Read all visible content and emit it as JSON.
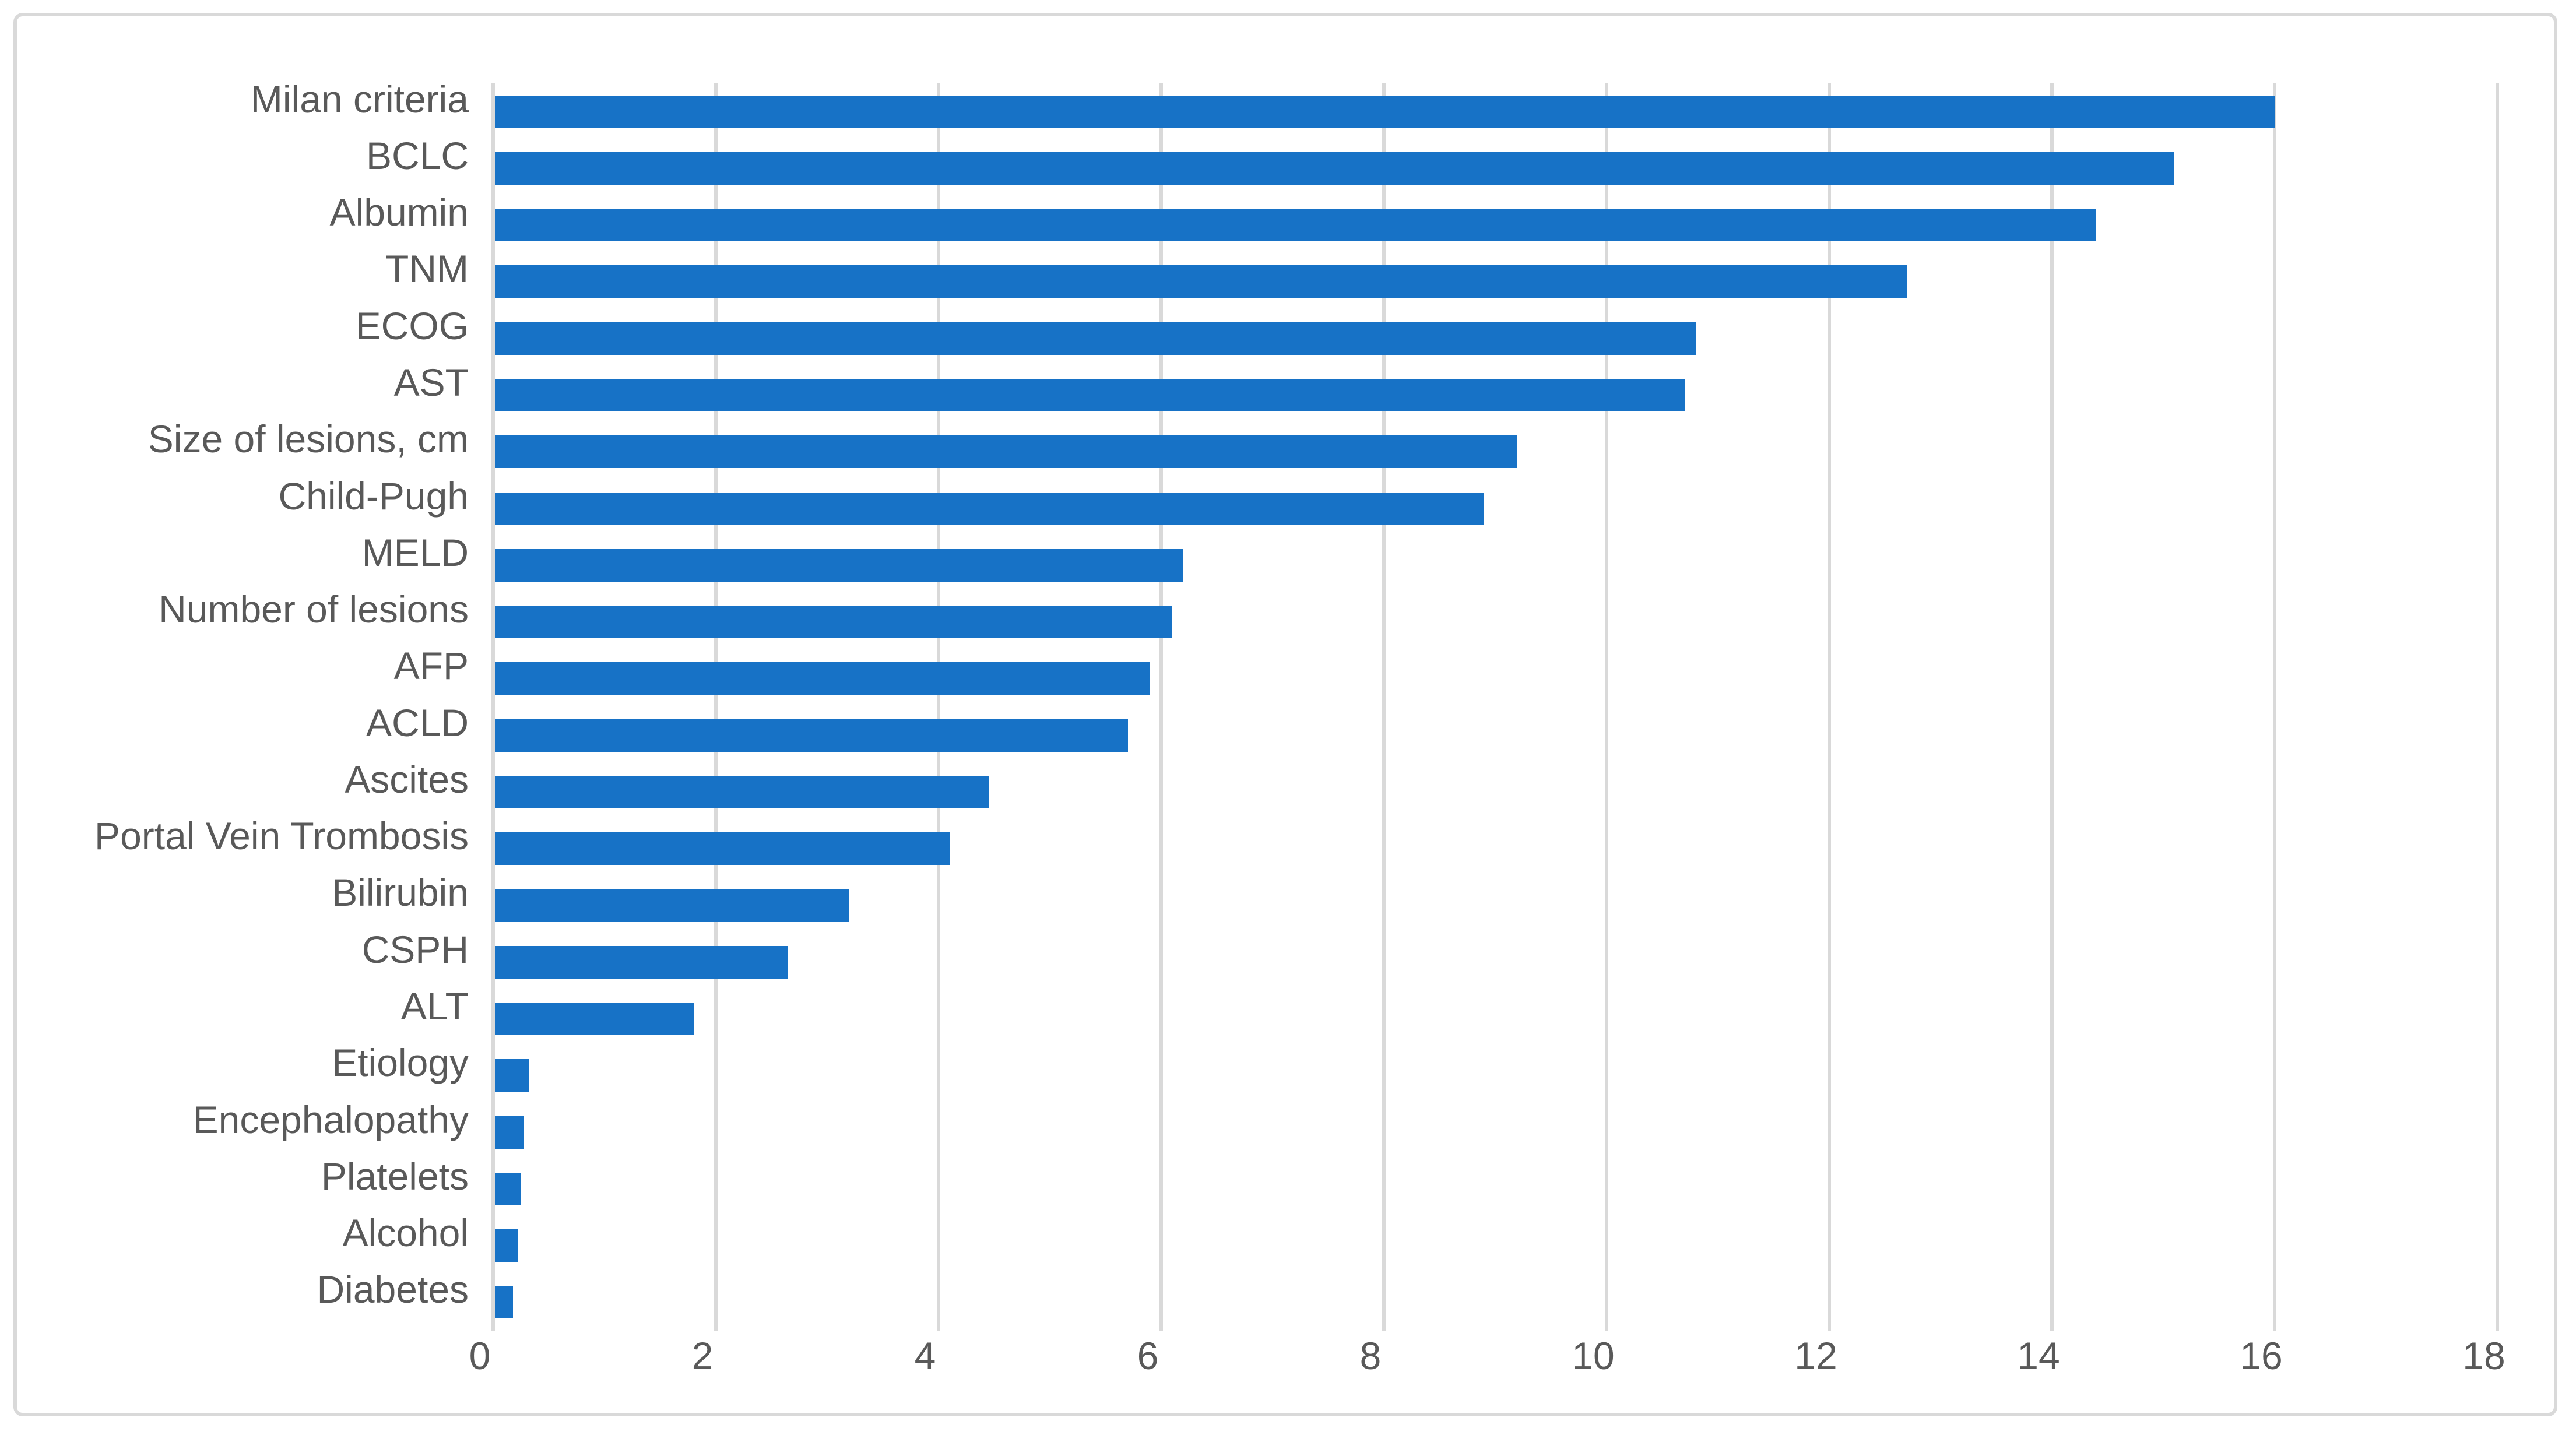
{
  "figure": {
    "background_color": "#FFFFFF",
    "border_color": "#D9D9D9",
    "title": ""
  },
  "chart_data": {
    "type": "bar",
    "orientation": "horizontal",
    "title": "",
    "xlabel": "",
    "ylabel": "",
    "categories": [
      "Milan criteria",
      "BCLC",
      "Albumin",
      "TNM",
      "ECOG",
      "AST",
      "Size of lesions, cm",
      "Child-Pugh",
      "MELD",
      "Number of lesions",
      "AFP",
      "ACLD",
      "Ascites",
      "Portal Vein Trombosis",
      "Bilirubin",
      "CSPH",
      "ALT",
      "Etiology",
      "Encephalopathy",
      "Platelets",
      "Alcohol",
      "Diabetes"
    ],
    "values": [
      16.0,
      15.1,
      14.4,
      12.7,
      10.8,
      10.7,
      9.2,
      8.9,
      6.2,
      6.1,
      5.9,
      5.7,
      4.45,
      4.1,
      3.2,
      2.65,
      1.8,
      0.32,
      0.28,
      0.25,
      0.22,
      0.18
    ],
    "xlim": [
      0,
      18
    ],
    "x_tick_labels": [
      "0",
      "2",
      "4",
      "6",
      "8",
      "10",
      "12",
      "14",
      "16",
      "18"
    ],
    "x_tick_values": [
      0,
      2,
      4,
      6,
      8,
      10,
      12,
      14,
      16,
      18
    ],
    "grid": "vertical-on",
    "legend": "none",
    "bar_color": "#1772C6",
    "gridline_color": "#D9D9D9",
    "axis_text_color": "#595959"
  }
}
